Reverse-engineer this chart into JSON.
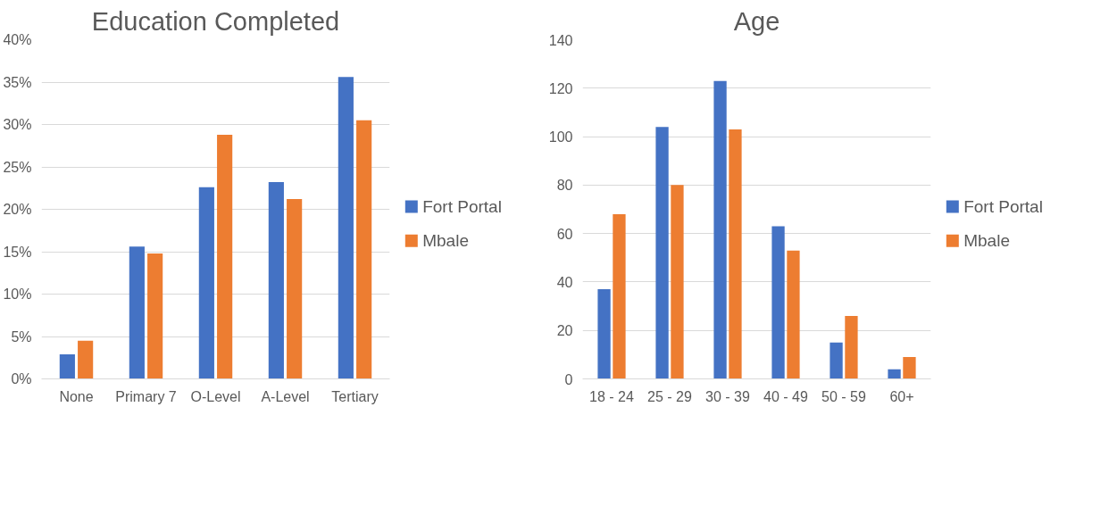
{
  "chart_data": [
    {
      "type": "bar",
      "title": "Education Completed",
      "categories": [
        "None",
        "Primary 7",
        "O-Level",
        "A-Level",
        "Tertiary"
      ],
      "series": [
        {
          "name": "Fort Portal",
          "color": "#4472c4",
          "values": [
            2.9,
            15.6,
            22.6,
            23.2,
            35.6
          ]
        },
        {
          "name": "Mbale",
          "color": "#ed7d31",
          "values": [
            4.5,
            14.8,
            28.8,
            21.2,
            30.5
          ]
        }
      ],
      "ylim": [
        0,
        40
      ],
      "yticks": [
        {
          "value": 0,
          "label": "0%"
        },
        {
          "value": 5,
          "label": "5%"
        },
        {
          "value": 10,
          "label": "10%"
        },
        {
          "value": 15,
          "label": "15%"
        },
        {
          "value": 20,
          "label": "20%"
        },
        {
          "value": 25,
          "label": "25%"
        },
        {
          "value": 30,
          "label": "30%"
        },
        {
          "value": 35,
          "label": "35%"
        },
        {
          "value": 40,
          "label": "40%"
        }
      ],
      "grid": "y",
      "legend": "right"
    },
    {
      "type": "bar",
      "title": "Age",
      "categories": [
        "18 - 24",
        "25 - 29",
        "30 - 39",
        "40 - 49",
        "50 - 59",
        "60+"
      ],
      "series": [
        {
          "name": "Fort Portal",
          "color": "#4472c4",
          "values": [
            37,
            104,
            123,
            63,
            15,
            4
          ]
        },
        {
          "name": "Mbale",
          "color": "#ed7d31",
          "values": [
            68,
            80,
            103,
            53,
            26,
            9
          ]
        }
      ],
      "ylim": [
        0,
        140
      ],
      "yticks": [
        0,
        20,
        40,
        60,
        80,
        100,
        120,
        140
      ],
      "grid": "y",
      "legend": "right"
    }
  ]
}
